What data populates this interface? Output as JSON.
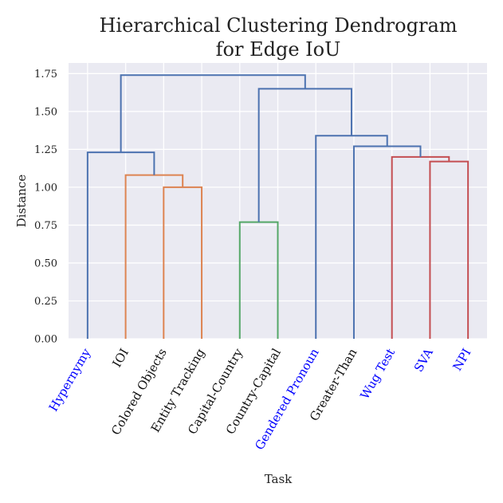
{
  "chart_data": {
    "type": "dendrogram",
    "title": [
      "Hierarchical Clustering Dendrogram",
      "for Edge IoU"
    ],
    "xlabel": "Task",
    "ylabel": "Distance",
    "ylim": [
      0,
      1.82
    ],
    "yticks": [
      0.0,
      0.25,
      0.5,
      0.75,
      1.0,
      1.25,
      1.5,
      1.75
    ],
    "ytick_labels": [
      "0.00",
      "0.25",
      "0.50",
      "0.75",
      "1.00",
      "1.25",
      "1.50",
      "1.75"
    ],
    "grid": true,
    "background": "#eaeaf2",
    "label_colors": {
      "highlight": "#0000ff",
      "default": "#111111"
    },
    "leaves": [
      {
        "label": "Hypernymy",
        "highlight": true
      },
      {
        "label": "IOI",
        "highlight": false
      },
      {
        "label": "Colored Objects",
        "highlight": false
      },
      {
        "label": "Entity Tracking",
        "highlight": false
      },
      {
        "label": "Capital-Country",
        "highlight": false
      },
      {
        "label": "Country-Capital",
        "highlight": false
      },
      {
        "label": "Gendered Pronoun",
        "highlight": true
      },
      {
        "label": "Greater-Than",
        "highlight": false
      },
      {
        "label": "Wug Test",
        "highlight": true
      },
      {
        "label": "SVA",
        "highlight": true
      },
      {
        "label": "NPI",
        "highlight": true
      }
    ],
    "merges": [
      {
        "left": 2,
        "right": 3,
        "height": 1.0,
        "color": "#dd8452"
      },
      {
        "left": 1,
        "right": 11,
        "height": 1.08,
        "color": "#dd8452"
      },
      {
        "left": 0,
        "right": 12,
        "height": 1.23,
        "color": "#4c72b0"
      },
      {
        "left": 4,
        "right": 5,
        "height": 0.77,
        "color": "#55a868"
      },
      {
        "left": 9,
        "right": 10,
        "height": 1.17,
        "color": "#c44e52"
      },
      {
        "left": 8,
        "right": 15,
        "height": 1.2,
        "color": "#c44e52"
      },
      {
        "left": 7,
        "right": 16,
        "height": 1.27,
        "color": "#4c72b0"
      },
      {
        "left": 6,
        "right": 17,
        "height": 1.34,
        "color": "#4c72b0"
      },
      {
        "left": 14,
        "right": 18,
        "height": 1.65,
        "color": "#4c72b0"
      },
      {
        "left": 13,
        "right": 19,
        "height": 1.74,
        "color": "#4c72b0"
      }
    ]
  }
}
